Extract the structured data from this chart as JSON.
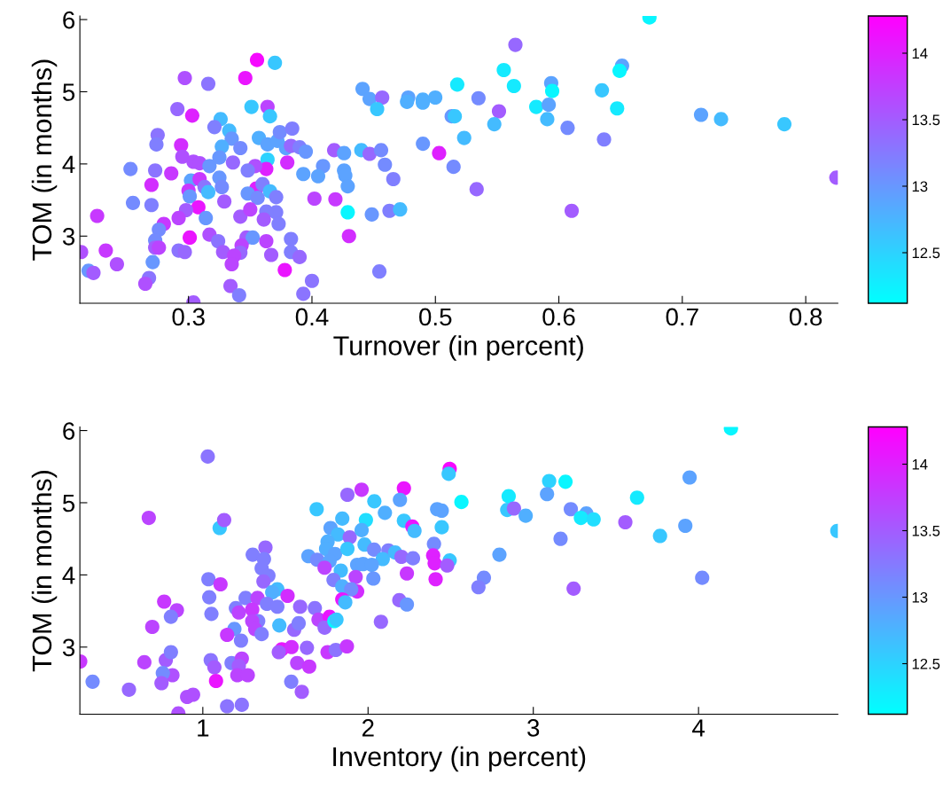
{
  "chart_data": [
    {
      "type": "scatter",
      "xlabel": "Turnover (in percent)",
      "ylabel": "TOM (in months)",
      "marker": "circle",
      "xlim": [
        0.212,
        0.826
      ],
      "ylim": [
        2.07,
        6.05
      ],
      "xticks": [
        0.3,
        0.4,
        0.5,
        0.6,
        0.7,
        0.8
      ],
      "yticks": [
        3,
        4,
        5,
        6
      ],
      "clim": [
        12.12,
        14.28
      ],
      "cticks": [
        12.5,
        13,
        13.5,
        14
      ],
      "x": [
        0.3555,
        0.37,
        0.297,
        0.316,
        0.346,
        0.441,
        0.291,
        0.303,
        0.351,
        0.364,
        0.366,
        0.326,
        0.321,
        0.333,
        0.335,
        0.327,
        0.342,
        0.275,
        0.274,
        0.294,
        0.295,
        0.304,
        0.309,
        0.317,
        0.325,
        0.336,
        0.357,
        0.364,
        0.372,
        0.374,
        0.384,
        0.379,
        0.383,
        0.39,
        0.395,
        0.38,
        0.364,
        0.363,
        0.354,
        0.348,
        0.253,
        0.273,
        0.286,
        0.27,
        0.302,
        0.309,
        0.3,
        0.313,
        0.316,
        0.301,
        0.325,
        0.327,
        0.355,
        0.36,
        0.366,
        0.371,
        0.348,
        0.356,
        0.329,
        0.308,
        0.255,
        0.27,
        0.298,
        0.292,
        0.28,
        0.276,
        0.314,
        0.342,
        0.35,
        0.363,
        0.371,
        0.361,
        0.373,
        0.402,
        0.419,
        0.418,
        0.426,
        0.44,
        0.409,
        0.393,
        0.405,
        0.426,
        0.427,
        0.429,
        0.429,
        0.43,
        0.301,
        0.317,
        0.324,
        0.347,
        0.352,
        0.363,
        0.383,
        0.383,
        0.39,
        0.367,
        0.343,
        0.342,
        0.328,
        0.337,
        0.335,
        0.292,
        0.297,
        0.273,
        0.273,
        0.276,
        0.213,
        0.226,
        0.233,
        0.242,
        0.219,
        0.223,
        0.271,
        0.268,
        0.265,
        0.334,
        0.341,
        0.378,
        0.4,
        0.393,
        0.304,
        0.6734,
        0.5648,
        0.5554,
        0.5177,
        0.5636,
        0.6512,
        0.6492,
        0.5938,
        0.5946,
        0.6349,
        0.4467,
        0.4569,
        0.4528,
        0.478,
        0.477,
        0.4898,
        0.4898,
        0.4999,
        0.5349,
        0.5515,
        0.5817,
        0.5918,
        0.5906,
        0.6472,
        0.5132,
        0.5157,
        0.5477,
        0.6071,
        0.7152,
        0.7314,
        0.7827,
        0.5233,
        0.6366,
        0.4467,
        0.456,
        0.4899,
        0.503,
        0.4591,
        0.4659,
        0.5147,
        0.5334,
        0.8248,
        0.4485,
        0.4628,
        0.4714,
        0.6104,
        0.4546
      ],
      "values": [
        5.44,
        5.4,
        5.19,
        5.11,
        5.19,
        5.04,
        4.76,
        4.67,
        4.79,
        4.79,
        4.66,
        4.62,
        4.51,
        4.46,
        4.35,
        4.24,
        4.22,
        4.4,
        4.27,
        4.26,
        4.1,
        4.03,
        4.01,
        3.97,
        4.09,
        4.02,
        4.36,
        4.27,
        4.32,
        4.44,
        4.49,
        4.22,
        4.25,
        4.23,
        4.17,
        4.02,
        4.06,
        3.93,
        3.97,
        3.91,
        3.93,
        3.91,
        3.87,
        3.71,
        3.77,
        3.79,
        3.63,
        3.68,
        3.61,
        3.55,
        3.81,
        3.68,
        3.66,
        3.72,
        3.62,
        3.54,
        3.59,
        3.53,
        3.48,
        3.4,
        3.46,
        3.43,
        3.36,
        3.25,
        3.17,
        3.09,
        3.25,
        3.27,
        3.37,
        3.34,
        3.33,
        3.23,
        3.17,
        3.52,
        3.51,
        4.19,
        4.15,
        4.19,
        3.97,
        3.86,
        3.83,
        3.91,
        3.84,
        3.69,
        3.33,
        3.0,
        2.98,
        3.02,
        2.93,
        2.98,
        2.98,
        2.93,
        2.96,
        2.78,
        2.71,
        2.74,
        2.87,
        2.77,
        2.78,
        2.73,
        2.61,
        2.8,
        2.78,
        2.94,
        2.84,
        2.84,
        2.78,
        3.28,
        2.8,
        2.61,
        2.52,
        2.49,
        2.64,
        2.42,
        2.34,
        2.31,
        2.18,
        2.53,
        2.38,
        2.2,
        2.08,
        6.03,
        5.65,
        5.3,
        5.1,
        5.08,
        5.36,
        5.29,
        5.12,
        5.01,
        5.02,
        4.9,
        4.92,
        4.76,
        4.92,
        4.86,
        4.89,
        4.85,
        4.92,
        4.91,
        4.73,
        4.79,
        4.82,
        4.62,
        4.77,
        4.66,
        4.66,
        4.55,
        4.5,
        4.68,
        4.62,
        4.55,
        4.36,
        4.34,
        4.14,
        4.19,
        4.28,
        4.15,
        3.99,
        3.79,
        3.96,
        3.65,
        3.81,
        3.3,
        3.35,
        3.37,
        3.35,
        2.51
      ],
      "cvalues": [
        14.2,
        12.6,
        13.6,
        13.3,
        14.1,
        12.9,
        13.4,
        14.0,
        12.6,
        13.7,
        12.6,
        12.7,
        13.2,
        12.7,
        13.0,
        12.8,
        13.1,
        13.3,
        13.2,
        13.9,
        13.6,
        13.6,
        13.6,
        13.0,
        13.0,
        13.4,
        12.8,
        12.9,
        12.9,
        13.1,
        13.2,
        12.9,
        13.4,
        13.2,
        13.0,
        13.9,
        12.5,
        14.0,
        13.6,
        13.2,
        13.1,
        13.3,
        13.8,
        13.9,
        12.9,
        13.8,
        13.8,
        13.3,
        12.7,
        13.0,
        13.0,
        13.1,
        14.0,
        13.2,
        12.7,
        13.2,
        13.0,
        13.1,
        13.5,
        14.1,
        13.1,
        13.2,
        13.5,
        13.7,
        13.8,
        13.1,
        13.0,
        13.5,
        13.7,
        13.2,
        13.2,
        13.5,
        13.2,
        13.7,
        13.8,
        13.5,
        12.9,
        12.7,
        13.0,
        12.9,
        12.9,
        12.9,
        12.9,
        12.9,
        12.2,
        13.9,
        14.1,
        13.6,
        13.3,
        13.5,
        13.0,
        13.7,
        13.2,
        13.2,
        13.4,
        13.5,
        13.7,
        13.4,
        13.5,
        13.7,
        13.7,
        13.3,
        13.4,
        13.1,
        13.5,
        13.7,
        13.6,
        13.8,
        13.8,
        13.6,
        13.0,
        13.5,
        13.0,
        13.3,
        13.6,
        13.5,
        13.2,
        14.1,
        13.3,
        13.3,
        13.5,
        12.2,
        13.4,
        12.3,
        12.3,
        12.3,
        12.9,
        12.2,
        12.9,
        12.2,
        12.6,
        12.9,
        13.4,
        12.6,
        12.9,
        12.8,
        12.8,
        12.8,
        12.8,
        13.1,
        13.5,
        12.3,
        12.9,
        12.7,
        12.3,
        13.0,
        12.6,
        12.7,
        13.1,
        12.9,
        12.7,
        12.6,
        12.7,
        13.2,
        13.4,
        13.1,
        13.0,
        14.0,
        13.1,
        13.2,
        13.1,
        13.4,
        13.5,
        13.0,
        13.2,
        12.7,
        13.5,
        13.2
      ]
    },
    {
      "type": "scatter",
      "xlabel": "Inventory (in percent)",
      "ylabel": "TOM (in months)",
      "marker": "circle",
      "xlim": [
        0.256,
        4.843
      ],
      "ylim": [
        2.07,
        6.05
      ],
      "xticks": [
        1,
        2,
        3,
        4
      ],
      "yticks": [
        3,
        4,
        5,
        6
      ],
      "clim": [
        12.12,
        14.28
      ],
      "cticks": [
        12.5,
        13,
        13.5,
        14
      ],
      "x": [
        1.03,
        0.673,
        1.102,
        1.129,
        1.961,
        1.875,
        1.689,
        1.844,
        1.987,
        1.773,
        1.818,
        1.889,
        1.961,
        1.755,
        1.746,
        1.8,
        1.875,
        1.979,
        1.639,
        1.692,
        1.767,
        1.737,
        1.835,
        1.934,
        1.97,
        1.791,
        1.925,
        1.844,
        1.934,
        1.898,
        1.844,
        1.862,
        1.379,
        1.302,
        1.37,
        1.356,
        1.397,
        1.367,
        1.034,
        1.107,
        1.451,
        1.42,
        1.513,
        1.259,
        1.331,
        1.039,
        0.766,
        0.843,
        0.807,
        0.694,
        1.052,
        1.2,
        1.218,
        1.299,
        1.388,
        1.451,
        1.589,
        1.678,
        1.335,
        1.299,
        1.317,
        1.356,
        1.191,
        1.147,
        1.231,
        1.463,
        1.553,
        1.58,
        1.7,
        1.767,
        1.737,
        1.796,
        1.809,
        1.478,
        1.537,
        1.46,
        1.63,
        1.755,
        1.805,
        1.872,
        1.571,
        1.644,
        1.535,
        1.599,
        0.258,
        0.333,
        0.553,
        0.646,
        0.776,
        0.807,
        0.816,
        0.758,
        0.75,
        0.852,
        0.905,
        0.941,
        1.048,
        1.07,
        1.08,
        1.174,
        1.236,
        1.218,
        1.209,
        1.272,
        1.147,
        1.236,
        4.196,
        2.494,
        2.488,
        2.217,
        2.193,
        2.038,
        2.565,
        2.102,
        2.217,
        2.268,
        2.281,
        2.418,
        2.446,
        2.446,
        2.851,
        2.842,
        2.883,
        2.954,
        3.096,
        3.195,
        3.083,
        3.227,
        3.321,
        3.288,
        3.365,
        3.628,
        3.946,
        3.557,
        3.92,
        3.767,
        4.84,
        3.165,
        2.795,
        2.399,
        2.394,
        2.403,
        2.494,
        2.479,
        2.036,
        2.123,
        2.164,
        2.089,
        2.202,
        2.272,
        2.023,
        2.235,
        2.409,
        2.032,
        2.701,
        2.668,
        4.022,
        3.244,
        2.189,
        2.235,
        2.078
      ],
      "values": [
        5.64,
        4.79,
        4.65,
        4.76,
        5.18,
        5.11,
        4.91,
        4.78,
        4.76,
        4.65,
        4.56,
        4.52,
        4.62,
        4.46,
        4.36,
        4.29,
        4.36,
        4.42,
        4.26,
        4.21,
        4.19,
        4.1,
        4.06,
        4.14,
        4.15,
        3.93,
        3.97,
        3.84,
        3.77,
        3.8,
        3.66,
        3.62,
        4.38,
        4.28,
        4.22,
        4.09,
        3.99,
        3.91,
        3.94,
        3.87,
        3.8,
        3.76,
        3.71,
        3.68,
        3.68,
        3.69,
        3.63,
        3.51,
        3.42,
        3.28,
        3.46,
        3.54,
        3.48,
        3.52,
        3.6,
        3.56,
        3.56,
        3.54,
        3.36,
        3.36,
        3.25,
        3.18,
        3.25,
        3.17,
        3.09,
        3.3,
        3.24,
        3.33,
        3.38,
        3.42,
        3.27,
        3.36,
        3.38,
        2.97,
        3.0,
        2.93,
        2.99,
        2.93,
        2.96,
        3.01,
        2.78,
        2.73,
        2.52,
        2.38,
        2.8,
        2.52,
        2.41,
        2.79,
        2.82,
        2.93,
        2.61,
        2.64,
        2.5,
        2.08,
        2.31,
        2.34,
        2.82,
        2.72,
        2.53,
        2.78,
        2.84,
        2.74,
        2.61,
        2.61,
        2.18,
        2.2,
        6.03,
        5.47,
        5.4,
        5.2,
        5.04,
        5.02,
        5.01,
        4.86,
        4.75,
        4.67,
        4.61,
        4.91,
        4.89,
        4.66,
        5.09,
        4.9,
        4.92,
        4.82,
        5.3,
        5.29,
        5.12,
        4.91,
        4.85,
        4.79,
        4.77,
        5.07,
        5.35,
        4.73,
        4.68,
        4.54,
        4.61,
        4.5,
        4.28,
        4.43,
        4.27,
        4.16,
        4.2,
        4.13,
        4.35,
        4.34,
        4.31,
        4.22,
        4.25,
        4.23,
        4.14,
        4.02,
        3.94,
        3.95,
        3.96,
        3.83,
        3.96,
        3.81,
        3.65,
        3.59,
        3.35
      ],
      "cvalues": [
        13.3,
        13.7,
        12.6,
        13.5,
        13.8,
        13.4,
        12.6,
        12.7,
        12.4,
        12.9,
        12.7,
        13.4,
        12.8,
        12.8,
        12.8,
        12.9,
        12.6,
        12.7,
        12.9,
        13.1,
        12.9,
        13.7,
        12.7,
        12.9,
        12.9,
        13.2,
        13.7,
        12.8,
        13.9,
        13.1,
        14.1,
        12.7,
        13.4,
        13.2,
        13.2,
        13.2,
        13.2,
        13.4,
        13.2,
        13.8,
        12.7,
        12.8,
        13.9,
        13.2,
        13.7,
        13.2,
        13.8,
        13.7,
        13.2,
        13.7,
        13.2,
        13.2,
        13.7,
        13.8,
        13.2,
        13.2,
        13.4,
        13.3,
        13.2,
        13.7,
        13.7,
        13.2,
        13.0,
        13.8,
        13.2,
        12.7,
        13.4,
        13.2,
        13.7,
        14.1,
        13.4,
        12.2,
        12.6,
        14.1,
        13.9,
        13.5,
        13.4,
        13.8,
        13.3,
        13.8,
        13.7,
        13.8,
        13.2,
        13.5,
        13.8,
        13.1,
        13.4,
        13.7,
        13.5,
        13.2,
        13.6,
        13.1,
        13.5,
        13.6,
        13.6,
        13.6,
        13.3,
        13.5,
        14.1,
        13.2,
        13.7,
        13.5,
        13.7,
        13.7,
        13.3,
        13.3,
        12.2,
        14.2,
        12.6,
        14.1,
        12.9,
        12.6,
        12.2,
        12.8,
        12.6,
        14.1,
        12.7,
        12.9,
        12.9,
        12.6,
        12.3,
        12.6,
        13.4,
        12.8,
        12.5,
        12.2,
        12.9,
        13.1,
        12.9,
        12.3,
        12.4,
        12.3,
        12.9,
        13.5,
        12.9,
        12.6,
        12.6,
        13.1,
        12.9,
        13.1,
        14.0,
        14.0,
        12.6,
        13.5,
        13.1,
        13.2,
        12.7,
        12.7,
        13.4,
        13.2,
        12.9,
        13.8,
        14.0,
        13.0,
        13.1,
        13.2,
        13.1,
        13.5,
        13.4,
        13.0,
        13.4
      ]
    }
  ]
}
